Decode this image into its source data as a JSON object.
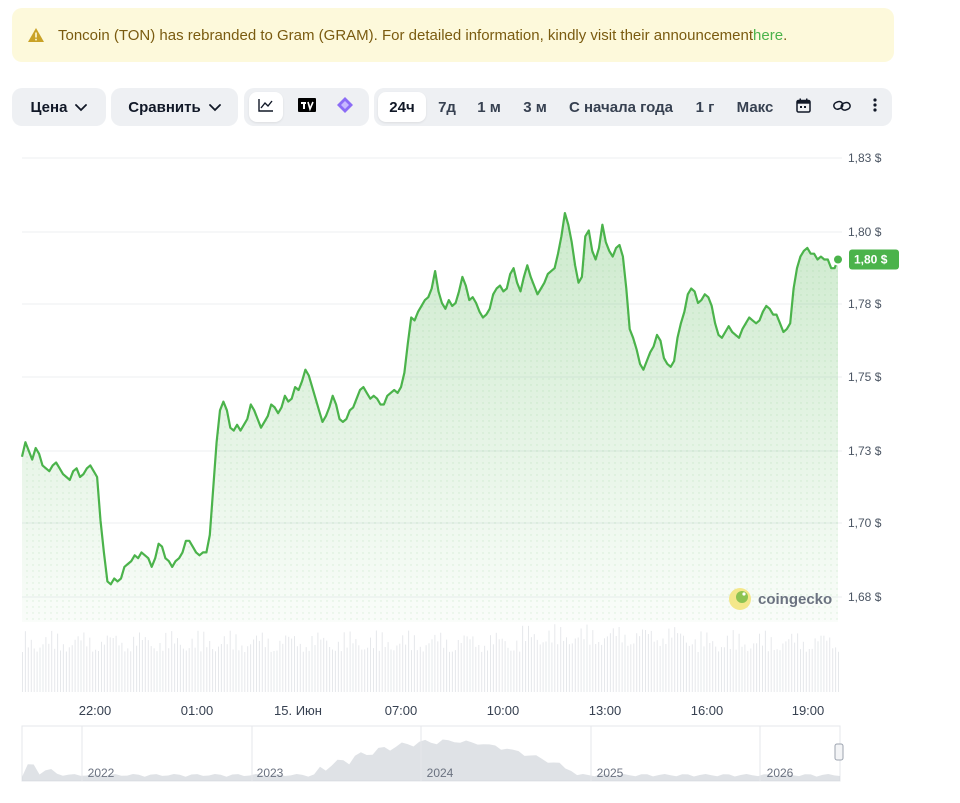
{
  "banner": {
    "text": "Toncoin (TON) has rebranded to Gram (GRAM). For detailed information, kindly visit their announcement ",
    "link": "here",
    "suffix": ".",
    "icon": "warning-icon"
  },
  "toolbar": {
    "price_label": "Цена",
    "compare_label": "Сравнить",
    "chart_icons": [
      "line-chart-icon",
      "tradingview-icon",
      "crypto-icon"
    ],
    "ranges": [
      "24ч",
      "7д",
      "1 м",
      "3 м",
      "С начала года",
      "1 г",
      "Макс"
    ],
    "active_range": "24ч",
    "extra_icons": [
      "calendar-icon",
      "link-icon",
      "more-icon"
    ]
  },
  "chart_data": {
    "type": "area",
    "y_ticks": [
      "1,83 $",
      "1,80 $",
      "1,78 $",
      "1,75 $",
      "1,73 $",
      "1,70 $",
      "1,68 $"
    ],
    "x_ticks": [
      "22:00",
      "01:00",
      "15. Июн",
      "07:00",
      "10:00",
      "13:00",
      "16:00",
      "19:00"
    ],
    "current_price": "1,80 $",
    "ylim": [
      1.675,
      1.835
    ],
    "series": [
      {
        "values": [
          1.732,
          1.737,
          1.734,
          1.731,
          1.735,
          1.733,
          1.729,
          1.728,
          1.727,
          1.729,
          1.73,
          1.728,
          1.726,
          1.725,
          1.724,
          1.727,
          1.728,
          1.725,
          1.726,
          1.728,
          1.729,
          1.727,
          1.725,
          1.71,
          1.699,
          1.689,
          1.688,
          1.69,
          1.689,
          1.69,
          1.694,
          1.695,
          1.696,
          1.698,
          1.697,
          1.699,
          1.698,
          1.697,
          1.694,
          1.697,
          1.702,
          1.701,
          1.697,
          1.696,
          1.694,
          1.696,
          1.697,
          1.699,
          1.703,
          1.703,
          1.701,
          1.699,
          1.698,
          1.699,
          1.699,
          1.705,
          1.721,
          1.737,
          1.748,
          1.751,
          1.748,
          1.742,
          1.741,
          1.743,
          1.741,
          1.743,
          1.745,
          1.75,
          1.748,
          1.745,
          1.742,
          1.744,
          1.746,
          1.75,
          1.749,
          1.747,
          1.749,
          1.753,
          1.751,
          1.752,
          1.756,
          1.755,
          1.758,
          1.762,
          1.76,
          1.756,
          1.752,
          1.748,
          1.744,
          1.746,
          1.749,
          1.753,
          1.75,
          1.745,
          1.744,
          1.745,
          1.748,
          1.749,
          1.752,
          1.755,
          1.756,
          1.754,
          1.752,
          1.753,
          1.752,
          1.75,
          1.75,
          1.753,
          1.754,
          1.755,
          1.754,
          1.756,
          1.761,
          1.771,
          1.78,
          1.779,
          1.782,
          1.784,
          1.786,
          1.787,
          1.79,
          1.796,
          1.789,
          1.785,
          1.783,
          1.786,
          1.784,
          1.785,
          1.789,
          1.794,
          1.791,
          1.786,
          1.787,
          1.785,
          1.782,
          1.78,
          1.781,
          1.783,
          1.788,
          1.79,
          1.791,
          1.789,
          1.79,
          1.795,
          1.797,
          1.792,
          1.789,
          1.794,
          1.798,
          1.794,
          1.791,
          1.788,
          1.79,
          1.792,
          1.795,
          1.796,
          1.797,
          1.802,
          1.808,
          1.816,
          1.812,
          1.806,
          1.798,
          1.792,
          1.794,
          1.808,
          1.81,
          1.803,
          1.8,
          1.804,
          1.812,
          1.806,
          1.803,
          1.801,
          1.804,
          1.805,
          1.801,
          1.79,
          1.776,
          1.773,
          1.769,
          1.764,
          1.762,
          1.765,
          1.768,
          1.77,
          1.774,
          1.772,
          1.766,
          1.764,
          1.763,
          1.765,
          1.773,
          1.778,
          1.782,
          1.788,
          1.79,
          1.789,
          1.785,
          1.786,
          1.788,
          1.787,
          1.784,
          1.778,
          1.774,
          1.773,
          1.775,
          1.777,
          1.775,
          1.774,
          1.773,
          1.776,
          1.778,
          1.78,
          1.779,
          1.778,
          1.779,
          1.782,
          1.784,
          1.783,
          1.781,
          1.781,
          1.778,
          1.775,
          1.776,
          1.778,
          1.79,
          1.797,
          1.801,
          1.803,
          1.804,
          1.802,
          1.802,
          1.8,
          1.801,
          1.8,
          1.8,
          1.797,
          1.797,
          1.8
        ]
      }
    ],
    "navigator_years": [
      "2022",
      "2023",
      "2024",
      "2025",
      "2026"
    ],
    "line_color": "#4bb34b",
    "grid": true,
    "price_axis": "right"
  },
  "watermark": "coingecko"
}
